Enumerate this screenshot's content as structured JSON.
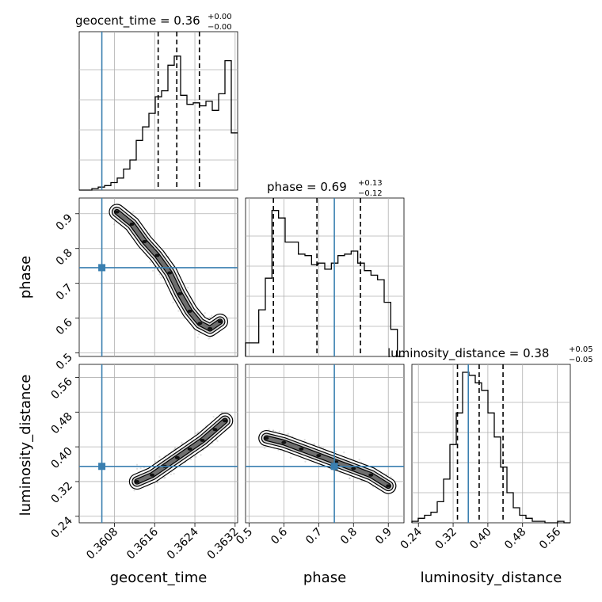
{
  "parameters": [
    "geocent_time",
    "phase",
    "luminosity_distance"
  ],
  "titles": [
    {
      "param": "geocent_time",
      "median": "0.36",
      "plus": "+0.00",
      "minus": "−0.00"
    },
    {
      "param": "phase",
      "median": "0.69",
      "plus": "+0.13",
      "minus": "−0.12"
    },
    {
      "param": "luminosity_distance",
      "median": "0.38",
      "plus": "+0.05",
      "minus": "−0.05"
    }
  ],
  "axis_labels": {
    "x": [
      "geocent_time",
      "phase",
      "luminosity_distance"
    ],
    "y": [
      "phase",
      "luminosity_distance"
    ]
  },
  "colors": {
    "truth": "#3a7fb0",
    "contour": "#000000",
    "hist": "#000000"
  },
  "chart_data": {
    "type": "corner",
    "grid": true,
    "truths": {
      "geocent_time": 0.36055,
      "phase": 0.745,
      "luminosity_distance": 0.355
    },
    "ranges": {
      "geocent_time": [
        0.3601,
        0.36325
      ],
      "phase": [
        0.49,
        0.945
      ],
      "luminosity_distance": [
        0.225,
        0.59
      ]
    },
    "ticks": {
      "geocent_time": [
        "0.3608",
        "0.3616",
        "0.3624",
        "0.3632"
      ],
      "phase": [
        "0.5",
        "0.6",
        "0.7",
        "0.8",
        "0.9"
      ],
      "luminosity_distance": [
        "0.24",
        "0.32",
        "0.40",
        "0.48",
        "0.56"
      ]
    },
    "quantiles": {
      "geocent_time": [
        0.36167,
        0.36204,
        0.36249
      ],
      "phase": [
        0.57,
        0.695,
        0.82
      ],
      "luminosity_distance": [
        0.33,
        0.38,
        0.435
      ]
    },
    "histograms": {
      "geocent_time": [
        0,
        0,
        0.01,
        0.02,
        0.03,
        0.05,
        0.08,
        0.14,
        0.2,
        0.33,
        0.42,
        0.51,
        0.62,
        0.66,
        0.83,
        0.89,
        0.63,
        0.57,
        0.58,
        0.56,
        0.59,
        0.53,
        0.64,
        0.86,
        0.38
      ],
      "phase": [
        0.09,
        0.09,
        0.31,
        0.52,
        0.97,
        0.92,
        0.76,
        0.76,
        0.68,
        0.67,
        0.61,
        0.62,
        0.58,
        0.62,
        0.67,
        0.68,
        0.7,
        0.62,
        0.57,
        0.54,
        0.51,
        0.36,
        0.18,
        0.0
      ],
      "luminosity_distance": [
        0.01,
        0.03,
        0.05,
        0.07,
        0.14,
        0.29,
        0.52,
        0.73,
        1.0,
        0.98,
        0.93,
        0.88,
        0.73,
        0.57,
        0.37,
        0.2,
        0.1,
        0.05,
        0.03,
        0.01,
        0.01,
        0.0,
        0.0,
        0.01,
        0.0
      ]
    },
    "ridge": {
      "phase_vs_geocent_time": [
        [
          0.36085,
          0.905
        ],
        [
          0.36115,
          0.87
        ],
        [
          0.3614,
          0.82
        ],
        [
          0.36165,
          0.78
        ],
        [
          0.3619,
          0.73
        ],
        [
          0.3621,
          0.67
        ],
        [
          0.3623,
          0.62
        ],
        [
          0.3625,
          0.585
        ],
        [
          0.3627,
          0.57
        ],
        [
          0.3629,
          0.59
        ]
      ],
      "luminosity_distance_vs_geocent_time": [
        [
          0.36125,
          0.32
        ],
        [
          0.36155,
          0.335
        ],
        [
          0.3618,
          0.355
        ],
        [
          0.36205,
          0.375
        ],
        [
          0.3623,
          0.395
        ],
        [
          0.36255,
          0.415
        ],
        [
          0.3628,
          0.44
        ],
        [
          0.363,
          0.46
        ]
      ],
      "luminosity_distance_vs_phase": [
        [
          0.55,
          0.42
        ],
        [
          0.6,
          0.41
        ],
        [
          0.65,
          0.395
        ],
        [
          0.7,
          0.38
        ],
        [
          0.75,
          0.365
        ],
        [
          0.8,
          0.35
        ],
        [
          0.85,
          0.335
        ],
        [
          0.9,
          0.31
        ]
      ]
    }
  }
}
